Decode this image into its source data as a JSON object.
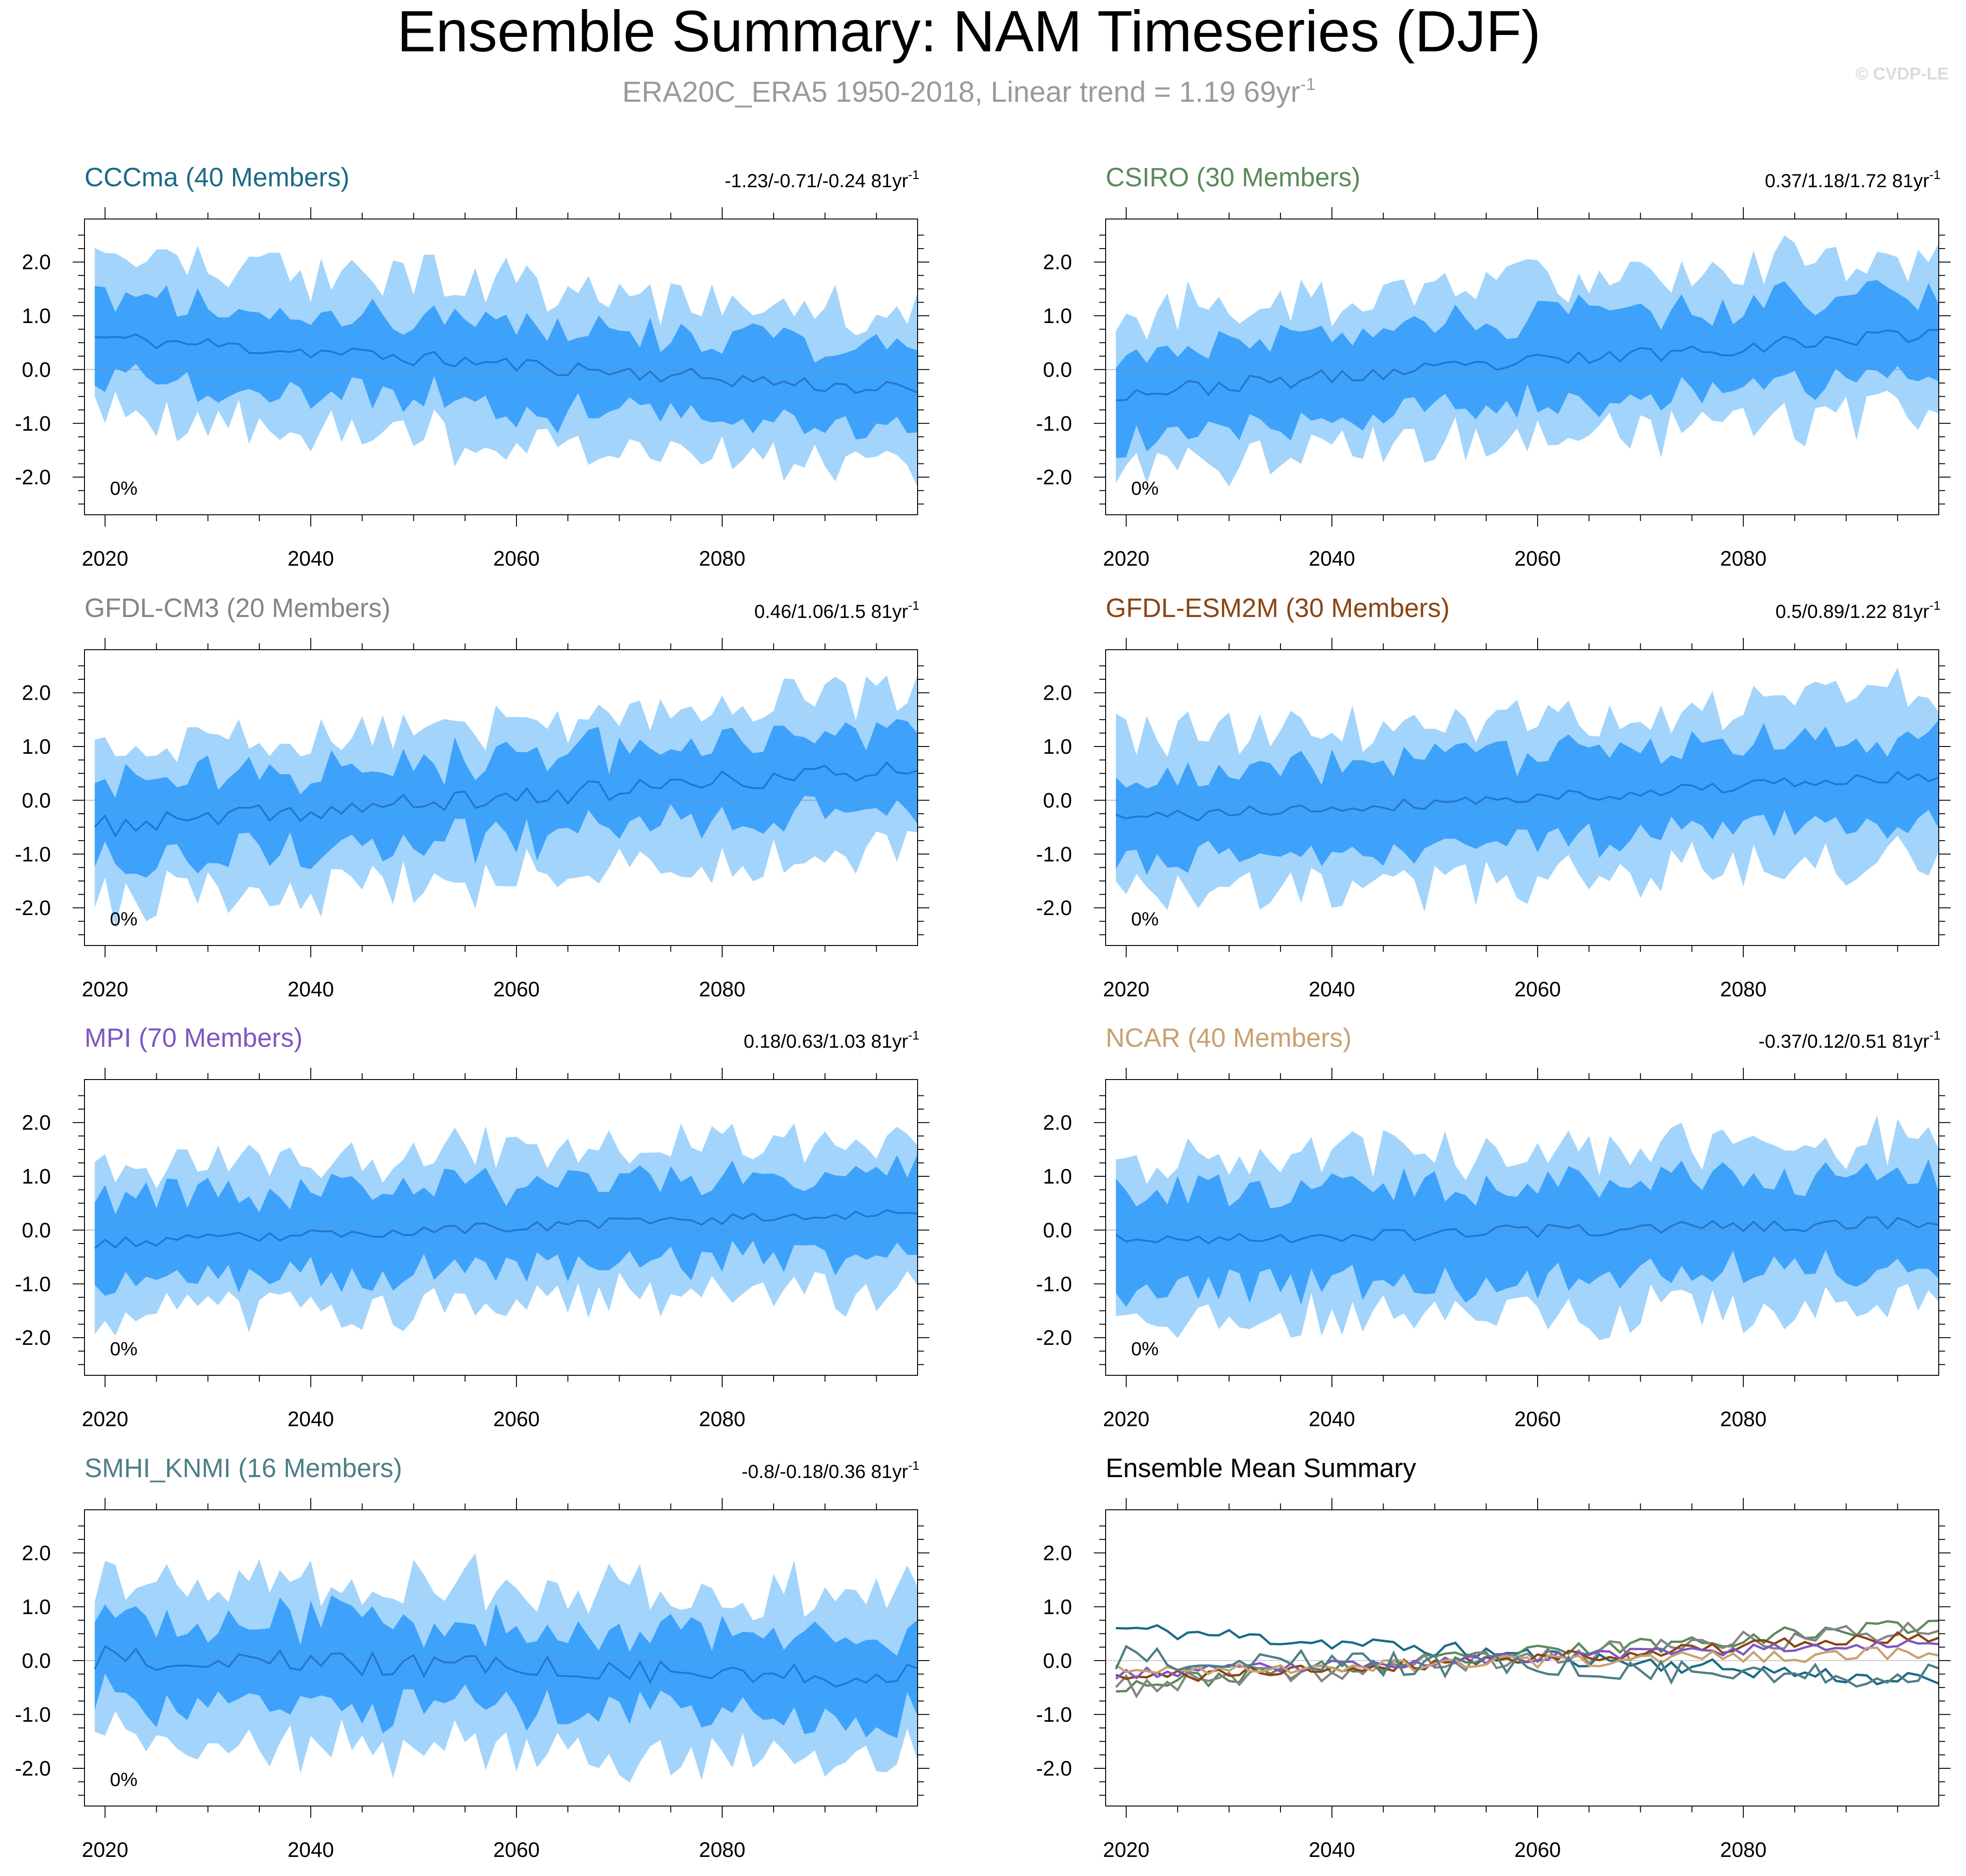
{
  "page": {
    "title": "Ensemble Summary: NAM Timeseries (DJF)",
    "subtitle_main": "ERA20C_ERA5 1950-2018, Linear trend = 1.19 69yr",
    "subtitle_sup": "-1",
    "copyright": "© CVDP-LE"
  },
  "colors": {
    "outer_band": "#a3d4fb",
    "inner_band": "#3ea2fb",
    "mean_line": "#2178d0",
    "axis": "#000000"
  },
  "chart_data": [
    {
      "type": "area",
      "title": "CCCma (40 Members)",
      "title_color": "#1c6b86",
      "trend_text": "-1.23/-0.71/-0.24 81yr",
      "trend_sup": "-1",
      "pct_label": "0%",
      "xlim": [
        2018,
        2099
      ],
      "ylim": [
        -2.7,
        2.8
      ],
      "x_ticks": [
        2020,
        2040,
        2060,
        2080
      ],
      "y_ticks": [
        2.0,
        1.0,
        0.0,
        -1.0,
        -2.0
      ],
      "y_tick_labels": [
        "2.0",
        "1.0",
        "0.0",
        "-1.0",
        "-2.0"
      ],
      "mean_start": 0.6,
      "mean_end": -0.4,
      "inner_half_width": 0.75,
      "outer_half_width": 1.45,
      "noise": 0.15,
      "seed": 11
    },
    {
      "type": "area",
      "title": "CSIRO (30 Members)",
      "title_color": "#5a8a5a",
      "trend_text": "0.37/1.18/1.72 81yr",
      "trend_sup": "-1",
      "pct_label": "0%",
      "xlim": [
        2018,
        2099
      ],
      "ylim": [
        -2.7,
        2.8
      ],
      "x_ticks": [
        2020,
        2040,
        2060,
        2080
      ],
      "y_ticks": [
        2.0,
        1.0,
        0.0,
        -1.0,
        -2.0
      ],
      "y_tick_labels": [
        "2.0",
        "1.0",
        "0.0",
        "-1.0",
        "-2.0"
      ],
      "mean_start": -0.45,
      "mean_end": 0.7,
      "inner_half_width": 0.75,
      "outer_half_width": 1.45,
      "noise": 0.15,
      "seed": 23
    },
    {
      "type": "area",
      "title": "GFDL-CM3 (20 Members)",
      "title_color": "#858585",
      "trend_text": "0.46/1.06/1.5 81yr",
      "trend_sup": "-1",
      "pct_label": "0%",
      "xlim": [
        2018,
        2099
      ],
      "ylim": [
        -2.7,
        2.8
      ],
      "x_ticks": [
        2020,
        2040,
        2060,
        2080
      ],
      "y_ticks": [
        2.0,
        1.0,
        0.0,
        -1.0,
        -2.0
      ],
      "y_tick_labels": [
        "2.0",
        "1.0",
        "0.0",
        "-1.0",
        "-2.0"
      ],
      "mean_start": -0.5,
      "mean_end": 0.6,
      "inner_half_width": 0.75,
      "outer_half_width": 1.45,
      "noise": 0.2,
      "seed": 37
    },
    {
      "type": "area",
      "title": "GFDL-ESM2M (30 Members)",
      "title_color": "#8b4513",
      "trend_text": "0.5/0.89/1.22 81yr",
      "trend_sup": "-1",
      "pct_label": "0%",
      "xlim": [
        2018,
        2099
      ],
      "ylim": [
        -2.7,
        2.8
      ],
      "x_ticks": [
        2020,
        2040,
        2060,
        2080
      ],
      "y_ticks": [
        2.0,
        1.0,
        0.0,
        -1.0,
        -2.0
      ],
      "y_tick_labels": [
        "2.0",
        "1.0",
        "0.0",
        "-1.0",
        "-2.0"
      ],
      "mean_start": -0.35,
      "mean_end": 0.45,
      "inner_half_width": 0.75,
      "outer_half_width": 1.5,
      "noise": 0.12,
      "seed": 41
    },
    {
      "type": "area",
      "title": "MPI (70 Members)",
      "title_color": "#7e57c2",
      "trend_text": "0.18/0.63/1.03 81yr",
      "trend_sup": "-1",
      "pct_label": "0%",
      "xlim": [
        2018,
        2099
      ],
      "ylim": [
        -2.7,
        2.8
      ],
      "x_ticks": [
        2020,
        2040,
        2060,
        2080
      ],
      "y_ticks": [
        2.0,
        1.0,
        0.0,
        -1.0,
        -2.0
      ],
      "y_tick_labels": [
        "2.0",
        "1.0",
        "0.0",
        "-1.0",
        "-2.0"
      ],
      "mean_start": -0.25,
      "mean_end": 0.35,
      "inner_half_width": 0.78,
      "outer_half_width": 1.4,
      "noise": 0.1,
      "seed": 53
    },
    {
      "type": "area",
      "title": "NCAR (40 Members)",
      "title_color": "#c8a270",
      "trend_text": "-0.37/0.12/0.51 81yr",
      "trend_sup": "-1",
      "pct_label": "0%",
      "xlim": [
        2018,
        2099
      ],
      "ylim": [
        -2.7,
        2.8
      ],
      "x_ticks": [
        2020,
        2040,
        2060,
        2080
      ],
      "y_ticks": [
        2.0,
        1.0,
        0.0,
        -1.0,
        -2.0
      ],
      "y_tick_labels": [
        "2.0",
        "1.0",
        "0.0",
        "-1.0",
        "-2.0"
      ],
      "mean_start": -0.2,
      "mean_end": 0.15,
      "inner_half_width": 0.85,
      "outer_half_width": 1.5,
      "noise": 0.12,
      "seed": 67
    },
    {
      "type": "area",
      "title": "SMHI_KNMI (16 Members)",
      "title_color": "#4d7f86",
      "trend_text": "-0.8/-0.18/0.36 81yr",
      "trend_sup": "-1",
      "pct_label": "0%",
      "xlim": [
        2018,
        2099
      ],
      "ylim": [
        -2.7,
        2.8
      ],
      "x_ticks": [
        2020,
        2040,
        2060,
        2080
      ],
      "y_ticks": [
        2.0,
        1.0,
        0.0,
        -1.0,
        -2.0
      ],
      "y_tick_labels": [
        "2.0",
        "1.0",
        "0.0",
        "-1.0",
        "-2.0"
      ],
      "mean_start": 0.05,
      "mean_end": -0.3,
      "inner_half_width": 0.75,
      "outer_half_width": 1.5,
      "noise": 0.22,
      "seed": 79
    },
    {
      "type": "line",
      "title": "Ensemble Mean Summary",
      "title_color": "#000000",
      "xlim": [
        2018,
        2099
      ],
      "ylim": [
        -2.7,
        2.8
      ],
      "x_ticks": [
        2020,
        2040,
        2060,
        2080
      ],
      "y_ticks": [
        2.0,
        1.0,
        0.0,
        -1.0,
        -2.0
      ],
      "y_tick_labels": [
        "2.0",
        "1.0",
        "0.0",
        "-1.0",
        "-2.0"
      ],
      "series": [
        {
          "name": "CCCma",
          "color": "#1c6b86",
          "start": 0.6,
          "end": -0.4,
          "noise": 0.15,
          "seed": 11
        },
        {
          "name": "CSIRO",
          "color": "#5a8a5a",
          "start": -0.45,
          "end": 0.7,
          "noise": 0.15,
          "seed": 23
        },
        {
          "name": "GFDL-CM3",
          "color": "#858585",
          "start": -0.5,
          "end": 0.6,
          "noise": 0.2,
          "seed": 37
        },
        {
          "name": "GFDL-ESM2M",
          "color": "#8b4513",
          "start": -0.35,
          "end": 0.45,
          "noise": 0.12,
          "seed": 41
        },
        {
          "name": "MPI",
          "color": "#7e57c2",
          "start": -0.25,
          "end": 0.35,
          "noise": 0.1,
          "seed": 53
        },
        {
          "name": "NCAR",
          "color": "#c8a270",
          "start": -0.2,
          "end": 0.15,
          "noise": 0.12,
          "seed": 67
        },
        {
          "name": "SMHI_KNMI",
          "color": "#4d7f86",
          "start": 0.05,
          "end": -0.3,
          "noise": 0.22,
          "seed": 79
        }
      ]
    }
  ]
}
